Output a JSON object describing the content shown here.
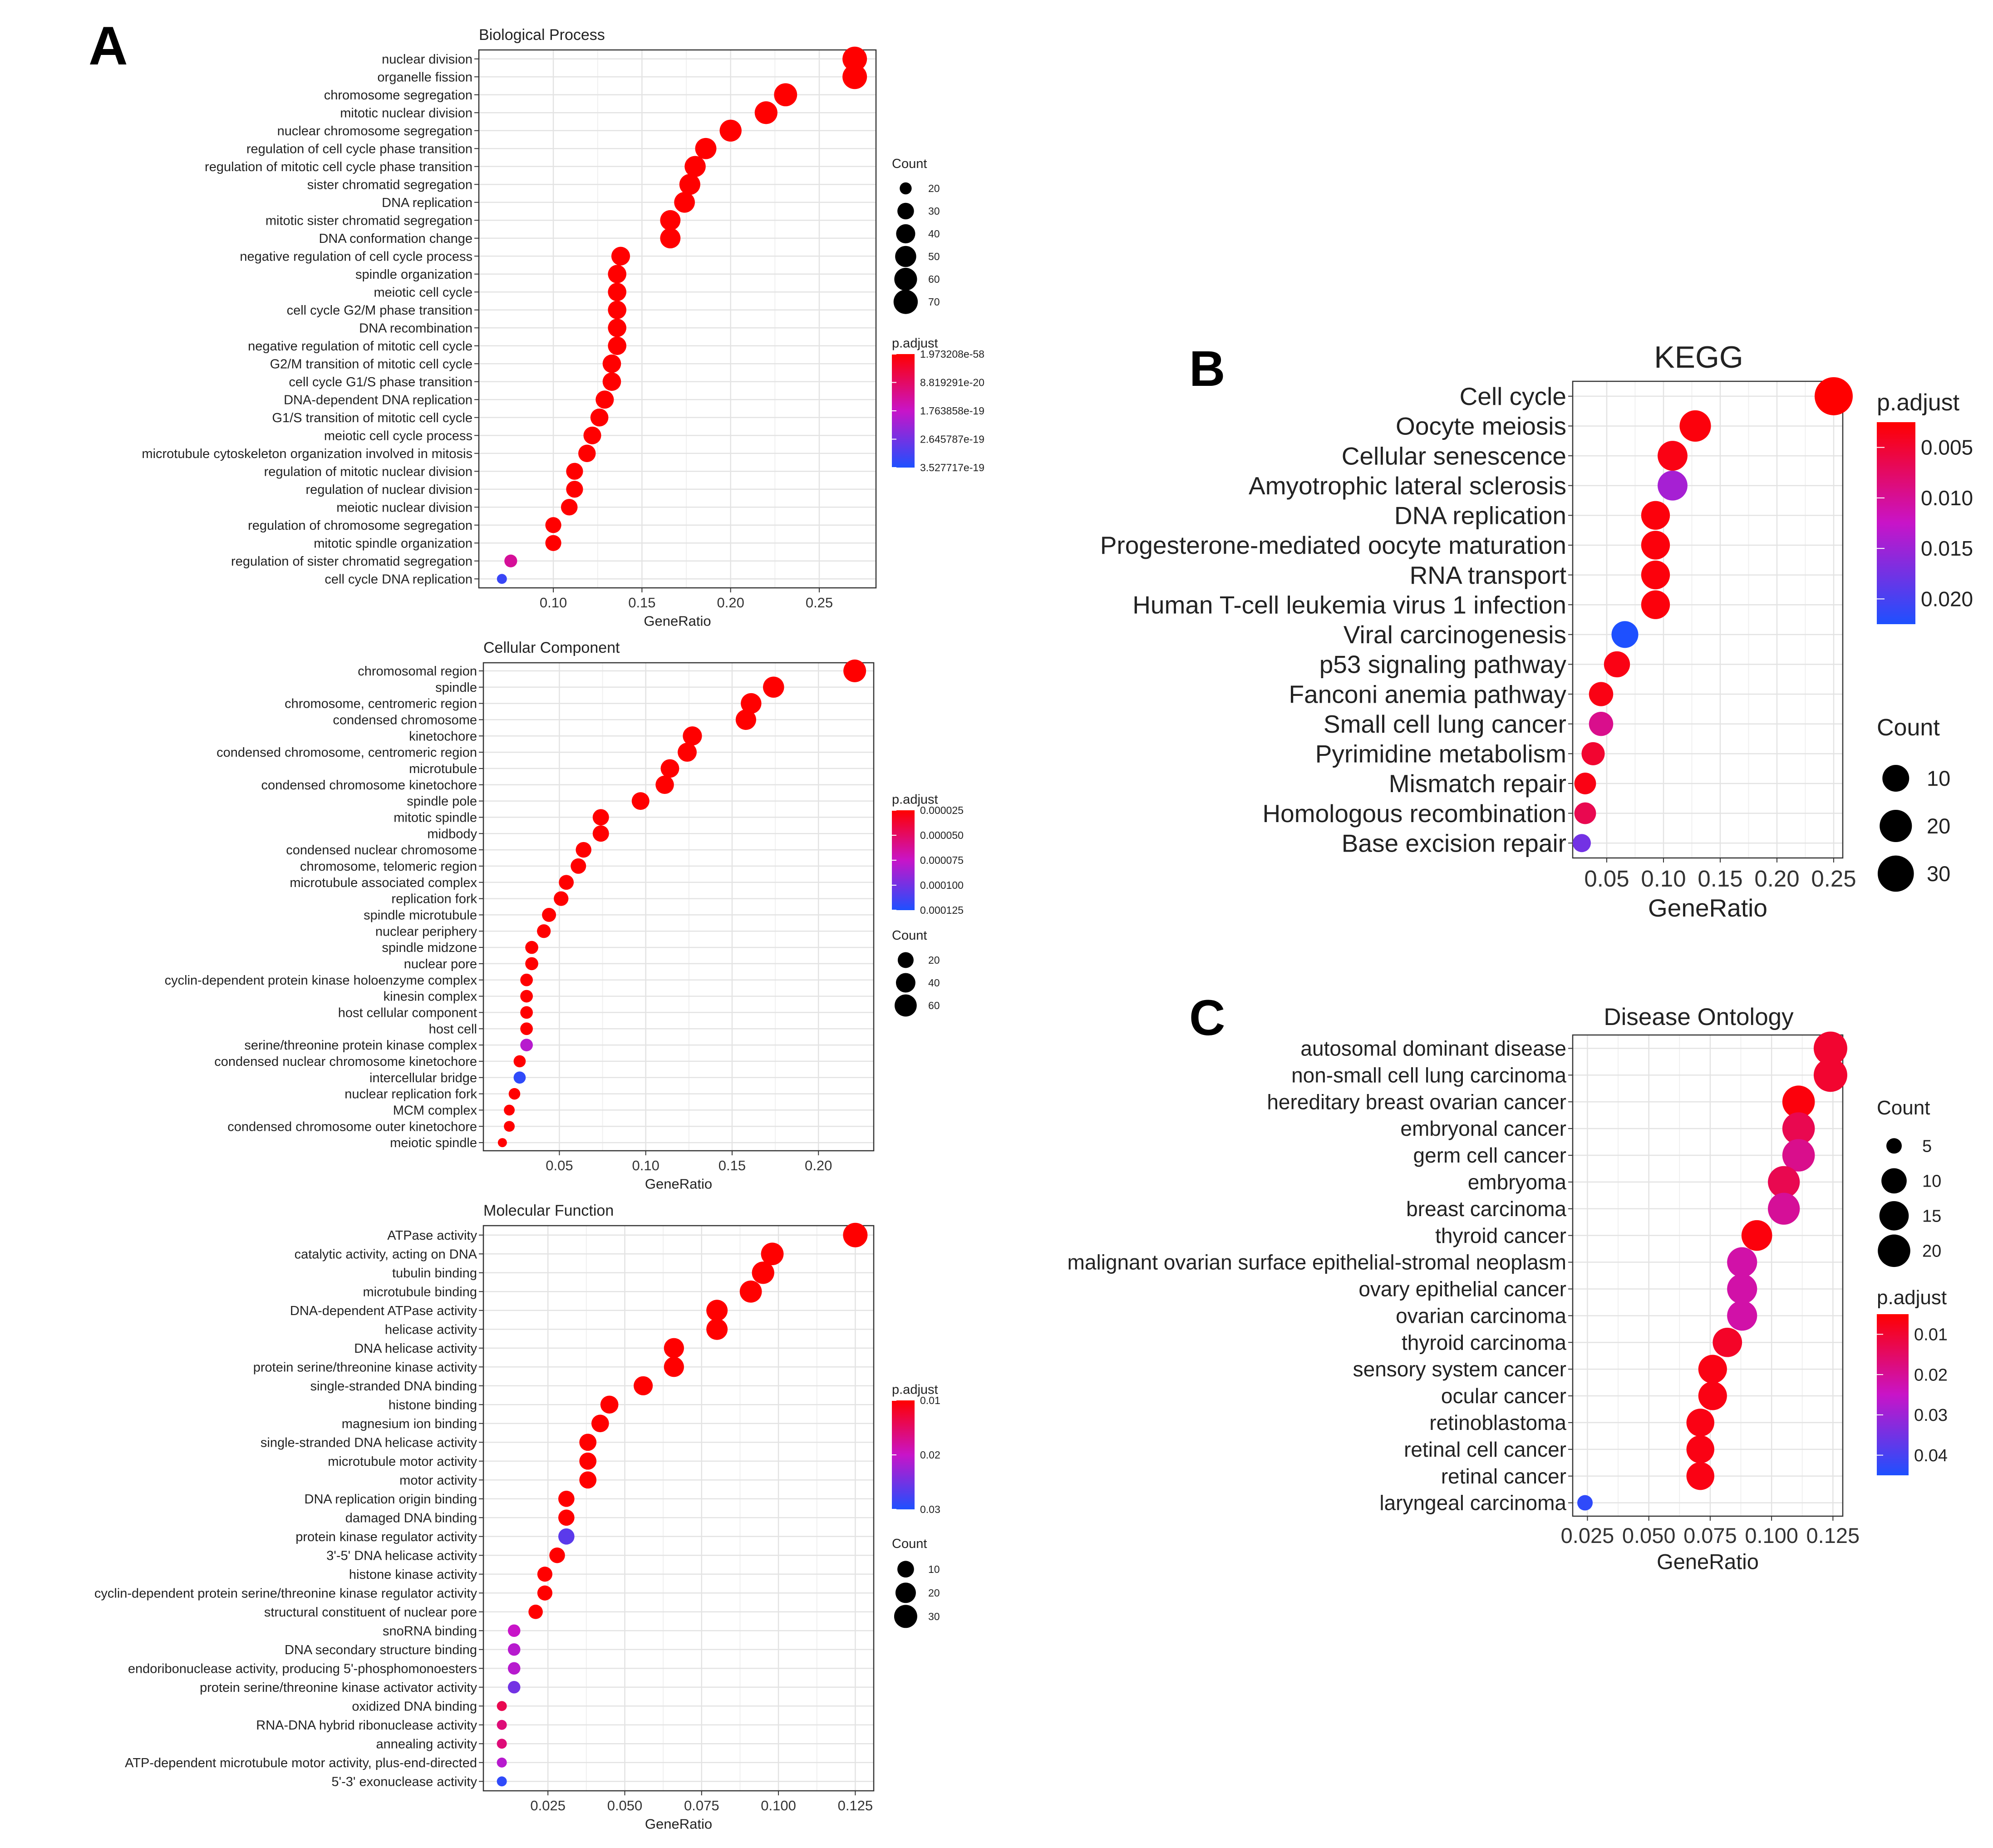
{
  "panel_letters": [
    "A",
    "B",
    "C"
  ],
  "chart_data": [
    {
      "id": "bp",
      "type": "scatter",
      "title": "Biological Process",
      "xlabel": "GeneRatio",
      "xlim": [
        0.058,
        0.282
      ],
      "xticks": [
        0.1,
        0.15,
        0.2,
        0.25
      ],
      "tick_labels": [
        "0.10",
        "0.15",
        "0.20",
        "0.25"
      ],
      "categories": [
        "nuclear division",
        "organelle fission",
        "chromosome segregation",
        "mitotic nuclear division",
        "nuclear chromosome segregation",
        "regulation of cell cycle phase transition",
        "regulation of mitotic cell cycle phase transition",
        "sister chromatid segregation",
        "DNA replication",
        "mitotic sister chromatid segregation",
        "DNA conformation change",
        "negative regulation of cell cycle process",
        "spindle organization",
        "meiotic cell cycle",
        "cell cycle G2/M phase transition",
        "DNA recombination",
        "negative regulation of mitotic cell cycle",
        "G2/M transition of mitotic cell cycle",
        "cell cycle G1/S phase transition",
        "DNA-dependent DNA replication",
        "G1/S transition of mitotic cell cycle",
        "meiotic cell cycle process",
        "microtubule cytoskeleton organization involved in mitosis",
        "regulation of mitotic nuclear division",
        "regulation of nuclear division",
        "meiotic nuclear division",
        "regulation of chromosome segregation",
        "mitotic spindle organization",
        "regulation of sister chromatid segregation",
        "cell cycle DNA replication"
      ],
      "gene_ratio": [
        0.27,
        0.27,
        0.231,
        0.22,
        0.2,
        0.186,
        0.18,
        0.177,
        0.174,
        0.166,
        0.166,
        0.138,
        0.136,
        0.136,
        0.136,
        0.136,
        0.136,
        0.133,
        0.133,
        0.129,
        0.126,
        0.122,
        0.119,
        0.112,
        0.112,
        0.109,
        0.1,
        0.1,
        0.076,
        0.071
      ],
      "count": [
        72,
        72,
        62,
        60,
        55,
        51,
        50,
        49,
        48,
        46,
        46,
        38,
        37,
        37,
        37,
        37,
        37,
        37,
        37,
        36,
        35,
        34,
        33,
        31,
        31,
        30,
        28,
        28,
        21,
        19
      ],
      "p_norm": [
        0,
        0,
        0,
        0,
        0,
        0,
        0,
        0,
        0,
        0,
        0,
        0,
        0,
        0,
        0,
        0,
        0,
        0,
        0,
        0,
        0,
        0,
        0,
        0,
        0,
        0,
        0,
        0,
        0.38,
        0.92
      ],
      "size_legend": {
        "title": "Count",
        "values": [
          20,
          30,
          40,
          50,
          60,
          70
        ],
        "labels": [
          "20",
          "30",
          "40",
          "50",
          "60",
          "70"
        ]
      },
      "color_legend": {
        "title": "p.adjust",
        "labels": [
          "1.973208e-58",
          "8.819291e-20",
          "1.763858e-19",
          "2.645787e-19",
          "3.527717e-19"
        ]
      }
    },
    {
      "id": "cc",
      "type": "scatter",
      "title": "Cellular Component",
      "xlabel": "GeneRatio",
      "xlim": [
        0.006,
        0.232
      ],
      "xticks": [
        0.05,
        0.1,
        0.15,
        0.2
      ],
      "tick_labels": [
        "0.05",
        "0.10",
        "0.15",
        "0.20"
      ],
      "categories": [
        "chromosomal region",
        "spindle",
        "chromosome, centromeric region",
        "condensed chromosome",
        "kinetochore",
        "condensed chromosome, centromeric region",
        "microtubule",
        "condensed chromosome kinetochore",
        "spindle pole",
        "mitotic spindle",
        "midbody",
        "condensed nuclear chromosome",
        "chromosome, telomeric region",
        "microtubule associated complex",
        "replication fork",
        "spindle microtubule",
        "nuclear periphery",
        "spindle midzone",
        "nuclear pore",
        "cyclin-dependent protein kinase holoenzyme complex",
        "kinesin complex",
        "host cellular component",
        "host cell",
        "serine/threonine protein kinase complex",
        "condensed nuclear chromosome kinetochore",
        "intercellular bridge",
        "nuclear replication fork",
        "MCM complex",
        "condensed chromosome outer kinetochore",
        "meiotic spindle"
      ],
      "gene_ratio": [
        0.221,
        0.174,
        0.161,
        0.158,
        0.127,
        0.124,
        0.114,
        0.111,
        0.097,
        0.074,
        0.074,
        0.064,
        0.061,
        0.054,
        0.051,
        0.044,
        0.041,
        0.034,
        0.034,
        0.031,
        0.031,
        0.031,
        0.031,
        0.031,
        0.027,
        0.027,
        0.024,
        0.021,
        0.021,
        0.017
      ],
      "count": [
        65,
        52,
        48,
        47,
        38,
        37,
        34,
        33,
        29,
        22,
        22,
        19,
        18,
        16,
        15,
        13,
        12,
        10,
        10,
        9,
        9,
        9,
        9,
        9,
        8,
        8,
        7,
        6,
        6,
        5
      ],
      "p_norm": [
        0,
        0,
        0,
        0,
        0,
        0,
        0,
        0,
        0,
        0,
        0,
        0,
        0,
        0,
        0,
        0,
        0,
        0,
        0,
        0,
        0,
        0,
        0,
        0.55,
        0,
        0.95,
        0,
        0,
        0,
        0
      ],
      "size_legend": {
        "title": "Count",
        "values": [
          20,
          40,
          60
        ],
        "labels": [
          "20",
          "40",
          "60"
        ]
      },
      "color_legend": {
        "title": "p.adjust",
        "labels": [
          "0.000025",
          "0.000050",
          "0.000075",
          "0.000100",
          "0.000125"
        ]
      }
    },
    {
      "id": "mf",
      "type": "scatter",
      "title": "Molecular Function",
      "xlabel": "GeneRatio",
      "xlim": [
        0.004,
        0.131
      ],
      "xticks": [
        0.025,
        0.05,
        0.075,
        0.1,
        0.125
      ],
      "tick_labels": [
        "0.025",
        "0.050",
        "0.075",
        "0.100",
        "0.125"
      ],
      "categories": [
        "ATPase activity",
        "catalytic activity, acting on DNA",
        "tubulin binding",
        "microtubule binding",
        "DNA-dependent ATPase activity",
        "helicase activity",
        "DNA helicase activity",
        "protein serine/threonine kinase activity",
        "single-stranded DNA binding",
        "histone binding",
        "magnesium ion binding",
        "single-stranded DNA helicase activity",
        "microtubule motor activity",
        "motor activity",
        "DNA replication origin binding",
        "damaged DNA binding",
        "protein kinase regulator activity",
        "3'-5' DNA helicase activity",
        "histone kinase activity",
        "cyclin-dependent protein serine/threonine kinase regulator activity",
        "structural constituent of nuclear pore",
        "snoRNA binding",
        "DNA secondary structure binding",
        "endoribonuclease activity, producing 5'-phosphomonoesters",
        "protein serine/threonine kinase activator activity",
        "oxidized DNA binding",
        "RNA-DNA hybrid ribonuclease activity",
        "annealing activity",
        "ATP-dependent microtubule motor activity, plus-end-directed",
        "5'-3' exonuclease activity"
      ],
      "gene_ratio": [
        0.125,
        0.098,
        0.095,
        0.091,
        0.08,
        0.08,
        0.066,
        0.066,
        0.056,
        0.045,
        0.042,
        0.038,
        0.038,
        0.038,
        0.031,
        0.031,
        0.031,
        0.028,
        0.024,
        0.024,
        0.021,
        0.014,
        0.014,
        0.014,
        0.014,
        0.01,
        0.01,
        0.01,
        0.01,
        0.01
      ],
      "count": [
        36,
        28,
        27,
        26,
        23,
        23,
        19,
        19,
        16,
        13,
        12,
        11,
        11,
        11,
        9,
        9,
        9,
        8,
        7,
        7,
        6,
        4,
        4,
        4,
        4,
        3,
        3,
        3,
        3,
        3
      ],
      "p_norm": [
        0,
        0,
        0,
        0,
        0,
        0,
        0,
        0,
        0,
        0,
        0,
        0,
        0,
        0,
        0,
        0,
        0.82,
        0,
        0,
        0,
        0,
        0.5,
        0.55,
        0.55,
        0.75,
        0.2,
        0.3,
        0.3,
        0.55,
        0.95
      ],
      "size_legend": {
        "title": "Count",
        "values": [
          10,
          20,
          30
        ],
        "labels": [
          "10",
          "20",
          "30"
        ]
      },
      "color_legend": {
        "title": "p.adjust",
        "labels": [
          "0.01",
          "0.02",
          "0.03"
        ]
      }
    },
    {
      "id": "kegg",
      "type": "scatter",
      "title": "KEGG",
      "xlabel": "GeneRatio",
      "xlim": [
        0.02,
        0.258
      ],
      "xticks": [
        0.05,
        0.1,
        0.15,
        0.2,
        0.25
      ],
      "tick_labels": [
        "0.05",
        "0.10",
        "0.15",
        "0.20",
        "0.25"
      ],
      "categories": [
        "Cell cycle",
        "Oocyte meiosis",
        "Cellular senescence",
        "Amyotrophic lateral sclerosis",
        "DNA replication",
        "Progesterone-mediated oocyte maturation",
        "RNA transport",
        "Human T-cell leukemia virus 1 infection",
        "Viral carcinogenesis",
        "p53 signaling pathway",
        "Fanconi anemia pathway",
        "Small cell lung cancer",
        "Pyrimidine metabolism",
        "Mismatch repair",
        "Homologous recombination",
        "Base excision repair"
      ],
      "gene_ratio": [
        0.25,
        0.128,
        0.108,
        0.108,
        0.093,
        0.093,
        0.093,
        0.093,
        0.066,
        0.059,
        0.045,
        0.045,
        0.038,
        0.031,
        0.031,
        0.028
      ],
      "count": [
        36,
        18,
        15,
        15,
        13,
        13,
        13,
        13,
        10,
        9,
        7,
        7,
        6,
        5,
        5,
        4
      ],
      "p_norm": [
        0,
        0.03,
        0.05,
        0.6,
        0.03,
        0.03,
        0.03,
        0.03,
        1.0,
        0.05,
        0.05,
        0.35,
        0.12,
        0.05,
        0.2,
        0.75
      ],
      "size_legend": {
        "title": "Count",
        "values": [
          10,
          20,
          30
        ],
        "labels": [
          "10",
          "20",
          "30"
        ]
      },
      "color_legend": {
        "title": "p.adjust",
        "labels": [
          "0.005",
          "0.010",
          "0.015",
          "0.020"
        ]
      }
    },
    {
      "id": "do",
      "type": "scatter",
      "title": "Disease Ontology",
      "xlabel": "GeneRatio",
      "xlim": [
        0.019,
        0.129
      ],
      "xticks": [
        0.025,
        0.05,
        0.075,
        0.1,
        0.125
      ],
      "tick_labels": [
        "0.025",
        "0.050",
        "0.075",
        "0.100",
        "0.125"
      ],
      "categories": [
        "autosomal dominant disease",
        "non-small cell lung carcinoma",
        "hereditary breast ovarian cancer",
        "embryonal cancer",
        "germ cell cancer",
        "embryoma",
        "breast carcinoma",
        "thyroid cancer",
        "malignant ovarian surface epithelial-stromal neoplasm",
        "ovary epithelial cancer",
        "ovarian carcinoma",
        "thyroid carcinoma",
        "sensory system cancer",
        "ocular cancer",
        "retinoblastoma",
        "retinal cell cancer",
        "retinal cancer",
        "laryngeal carcinoma"
      ],
      "gene_ratio": [
        0.124,
        0.124,
        0.111,
        0.111,
        0.111,
        0.105,
        0.105,
        0.094,
        0.088,
        0.088,
        0.088,
        0.082,
        0.076,
        0.076,
        0.071,
        0.071,
        0.071,
        0.024
      ],
      "count": [
        22,
        22,
        20,
        20,
        20,
        19,
        19,
        17,
        16,
        16,
        16,
        15,
        14,
        14,
        13,
        13,
        13,
        5
      ],
      "p_norm": [
        0.12,
        0.12,
        0.03,
        0.2,
        0.35,
        0.2,
        0.38,
        0.03,
        0.42,
        0.42,
        0.42,
        0.1,
        0.05,
        0.05,
        0.05,
        0.05,
        0.05,
        0.95
      ],
      "size_legend": {
        "title": "Count",
        "values": [
          5,
          10,
          15,
          20
        ],
        "labels": [
          "5",
          "10",
          "15",
          "20"
        ]
      },
      "color_legend": {
        "title": "p.adjust",
        "labels": [
          "0.01",
          "0.02",
          "0.03",
          "0.04"
        ]
      }
    }
  ]
}
